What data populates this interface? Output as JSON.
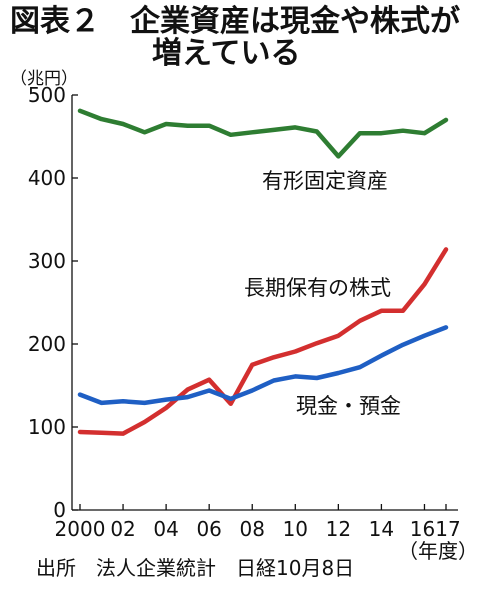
{
  "header": {
    "title_line1": "図表２　企業資産は現金や株式が",
    "title_line2": "増えている"
  },
  "unit_label": "（兆円）",
  "source_note": "出所　法人企業統計　日経10月8日",
  "chart_data": {
    "type": "line",
    "title": "図表２　企業資産は現金や株式が増えている",
    "ylabel": "（兆円）",
    "xlabel": "（年度）",
    "ylim": [
      0,
      500
    ],
    "yticks": [
      0,
      100,
      200,
      300,
      400,
      500
    ],
    "ytick_labels": [
      "0",
      "100",
      "200",
      "300",
      "400",
      "500"
    ],
    "xlim": [
      2000,
      2017
    ],
    "xticks": [
      2000,
      2002,
      2004,
      2006,
      2008,
      2010,
      2012,
      2014,
      2016,
      2017
    ],
    "xtick_labels": [
      {
        "text": "2000",
        "x": 2000
      },
      {
        "text": "02",
        "x": 2002
      },
      {
        "text": "04",
        "x": 2004
      },
      {
        "text": "06",
        "x": 2006
      },
      {
        "text": "08",
        "x": 2008
      },
      {
        "text": "10",
        "x": 2010
      },
      {
        "text": "12",
        "x": 2012
      },
      {
        "text": "14",
        "x": 2014
      },
      {
        "text": "1617",
        "x": 2016.5
      }
    ],
    "x": [
      2000,
      2001,
      2002,
      2003,
      2004,
      2005,
      2006,
      2007,
      2008,
      2009,
      2010,
      2011,
      2012,
      2013,
      2014,
      2015,
      2016,
      2017
    ],
    "series": [
      {
        "name": "有形固定資産",
        "color": "#2e7d32",
        "values": [
          481,
          471,
          465,
          455,
          465,
          463,
          463,
          452,
          455,
          458,
          461,
          456,
          426,
          454,
          454,
          457,
          454,
          470
        ]
      },
      {
        "name": "長期保有の株式",
        "color": "#d32f2f",
        "values": [
          94,
          93,
          92,
          106,
          123,
          145,
          157,
          128,
          175,
          184,
          191,
          201,
          210,
          228,
          240,
          240,
          272,
          314
        ]
      },
      {
        "name": "現金・預金",
        "color": "#1f5fc4",
        "values": [
          139,
          129,
          131,
          129,
          133,
          136,
          144,
          134,
          144,
          156,
          161,
          159,
          165,
          172,
          186,
          199,
          210,
          220
        ]
      }
    ]
  }
}
